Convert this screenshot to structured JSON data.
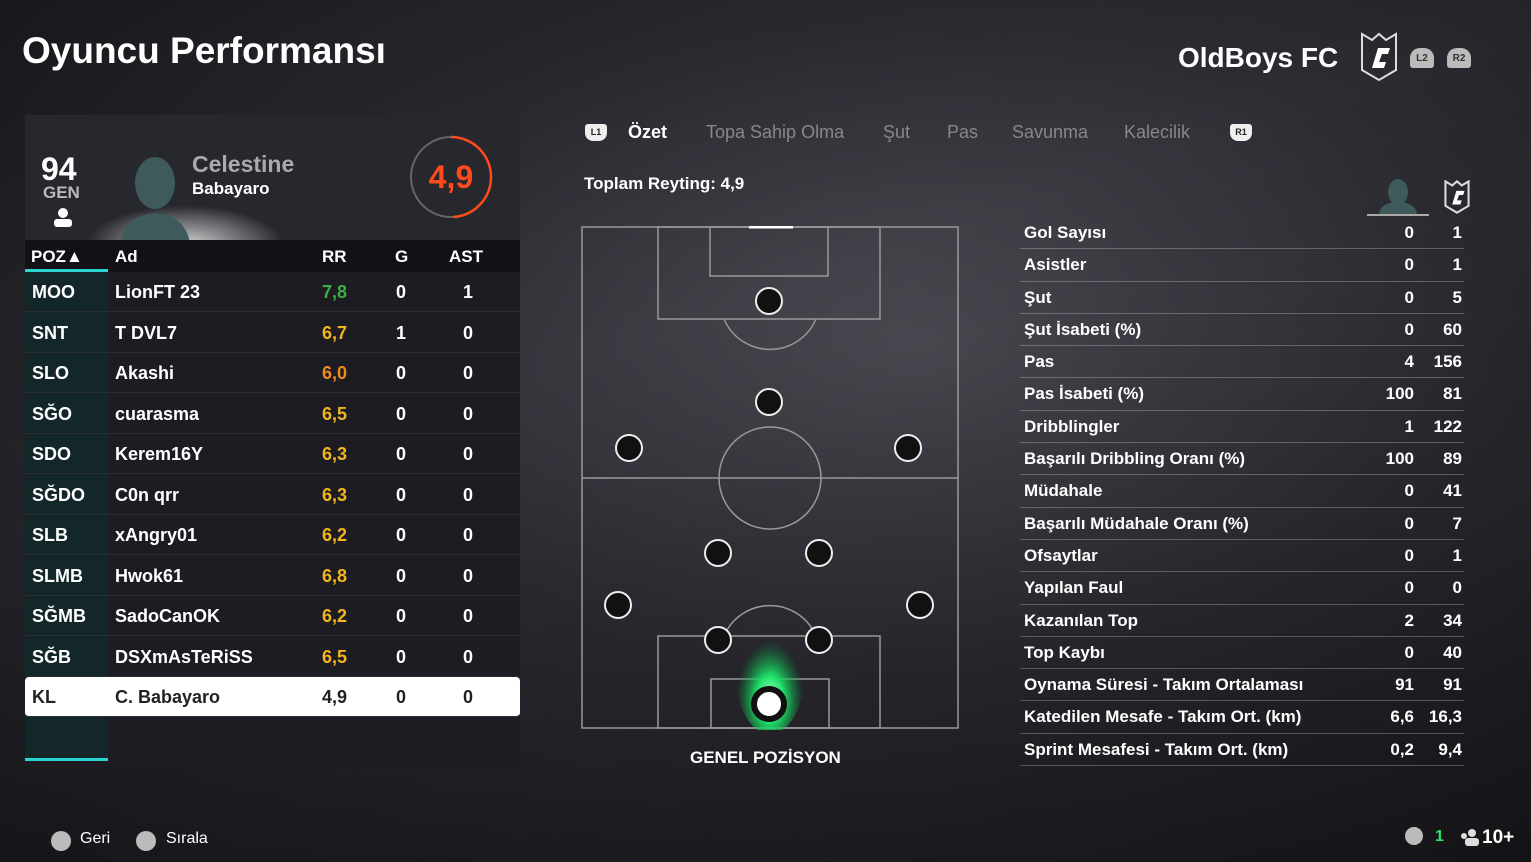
{
  "header": {
    "title": "Oyuncu Performansı",
    "club": "OldBoys FC",
    "l2": "L2",
    "r2": "R2"
  },
  "player": {
    "overall": "94",
    "overall_label": "GEN",
    "first_name": "Celestine",
    "last_name": "Babayaro",
    "rating": "4,9",
    "rating_fraction": 0.49
  },
  "table": {
    "headers": {
      "pos": "POZ▲",
      "name": "Ad",
      "rr": "RR",
      "g": "G",
      "ast": "AST"
    },
    "rows": [
      {
        "pos": "MOO",
        "name": "LionFT 23",
        "rr": "7,8",
        "g": "0",
        "ast": "1",
        "color": "#3cb043"
      },
      {
        "pos": "SNT",
        "name": "T DVL7",
        "rr": "6,7",
        "g": "1",
        "ast": "0",
        "color": "#f2b51c"
      },
      {
        "pos": "SLO",
        "name": "Akashi",
        "rr": "6,0",
        "g": "0",
        "ast": "0",
        "color": "#f28a1c"
      },
      {
        "pos": "SĞO",
        "name": "cuarasma",
        "rr": "6,5",
        "g": "0",
        "ast": "0",
        "color": "#f2b51c"
      },
      {
        "pos": "SDO",
        "name": "Kerem16Y",
        "rr": "6,3",
        "g": "0",
        "ast": "0",
        "color": "#f2b51c"
      },
      {
        "pos": "SĞDO",
        "name": "C0n qrr",
        "rr": "6,3",
        "g": "0",
        "ast": "0",
        "color": "#f2b51c"
      },
      {
        "pos": "SLB",
        "name": "xAngry01",
        "rr": "6,2",
        "g": "0",
        "ast": "0",
        "color": "#f2b51c"
      },
      {
        "pos": "SLMB",
        "name": "Hwok61",
        "rr": "6,8",
        "g": "0",
        "ast": "0",
        "color": "#f2b51c"
      },
      {
        "pos": "SĞMB",
        "name": "SadoCanOK",
        "rr": "6,2",
        "g": "0",
        "ast": "0",
        "color": "#f2b51c"
      },
      {
        "pos": "SĞB",
        "name": "DSXmAsTeRiSS",
        "rr": "6,5",
        "g": "0",
        "ast": "0",
        "color": "#f2b51c"
      },
      {
        "pos": "KL",
        "name": "C. Babayaro",
        "rr": "4,9",
        "g": "0",
        "ast": "0",
        "color": "#222222"
      }
    ]
  },
  "tabs": {
    "l1": "L1",
    "r1": "R1",
    "items": [
      "Özet",
      "Topa Sahip Olma",
      "Şut",
      "Pas",
      "Savunma",
      "Kalecilik"
    ]
  },
  "summary": {
    "total": "Toplam Reyting: 4,9",
    "pitch_label": "GENEL POZİSYON"
  },
  "stats": [
    [
      "Gol Sayısı",
      "0",
      "1"
    ],
    [
      "Asistler",
      "0",
      "1"
    ],
    [
      "Şut",
      "0",
      "5"
    ],
    [
      "Şut İsabeti (%)",
      "0",
      "60"
    ],
    [
      "Pas",
      "4",
      "156"
    ],
    [
      "Pas İsabeti (%)",
      "100",
      "81"
    ],
    [
      "Dribblingler",
      "1",
      "122"
    ],
    [
      "Başarılı Dribbling Oranı (%)",
      "100",
      "89"
    ],
    [
      "Müdahale",
      "0",
      "41"
    ],
    [
      "Başarılı Müdahale Oranı (%)",
      "0",
      "7"
    ],
    [
      "Ofsaytlar",
      "0",
      "1"
    ],
    [
      "Yapılan Faul",
      "0",
      "0"
    ],
    [
      "Kazanılan Top",
      "2",
      "34"
    ],
    [
      "Top Kaybı",
      "0",
      "40"
    ],
    [
      "Oynama Süresi - Takım Ortalaması",
      "91",
      "91"
    ],
    [
      "Katedilen Mesafe - Takım Ort. (km)",
      "6,6",
      "16,3"
    ],
    [
      "Sprint Mesafesi - Takım Ort. (km)",
      "0,2",
      "9,4"
    ]
  ],
  "footer": {
    "back": "Geri",
    "sort": "Sırala",
    "count": "1",
    "players": "10+"
  }
}
